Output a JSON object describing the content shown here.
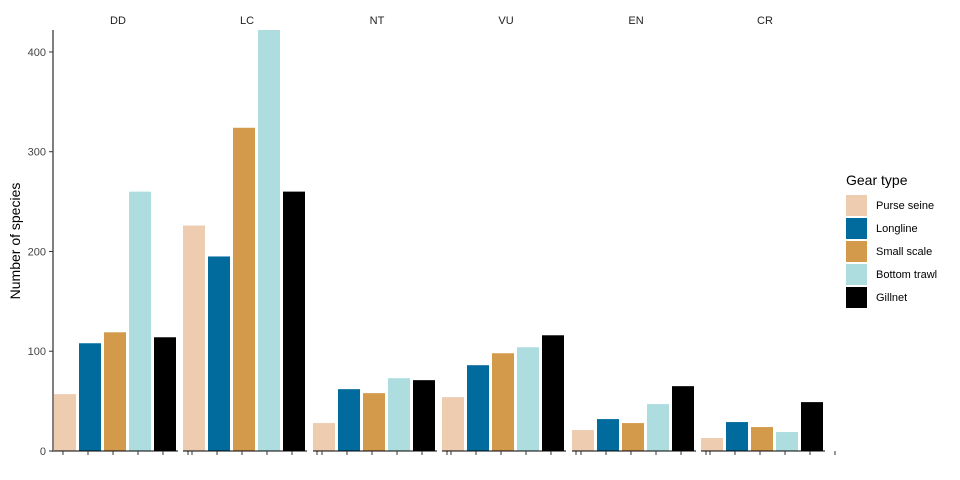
{
  "chart_data": {
    "type": "bar",
    "ylabel": "Number of species",
    "ylim": [
      0,
      422
    ],
    "yticks": [
      0,
      100,
      200,
      300,
      400
    ],
    "facets": [
      "DD",
      "LC",
      "NT",
      "VU",
      "EN",
      "CR"
    ],
    "legend_title": "Gear type",
    "legend_position": "right",
    "grid": false,
    "series": [
      {
        "name": "Purse seine",
        "color": "#EDCCB0",
        "values": [
          57,
          226,
          28,
          54,
          21,
          13
        ]
      },
      {
        "name": "Longline",
        "color": "#006B9C",
        "values": [
          108,
          195,
          62,
          86,
          32,
          29
        ]
      },
      {
        "name": "Small scale",
        "color": "#D49A4B",
        "values": [
          119,
          324,
          58,
          98,
          28,
          24
        ]
      },
      {
        "name": "Bottom trawl",
        "color": "#AEDDE0",
        "values": [
          260,
          422,
          73,
          104,
          47,
          19
        ]
      },
      {
        "name": "Gillnet",
        "color": "#000000",
        "values": [
          114,
          260,
          71,
          116,
          65,
          49
        ]
      }
    ]
  }
}
